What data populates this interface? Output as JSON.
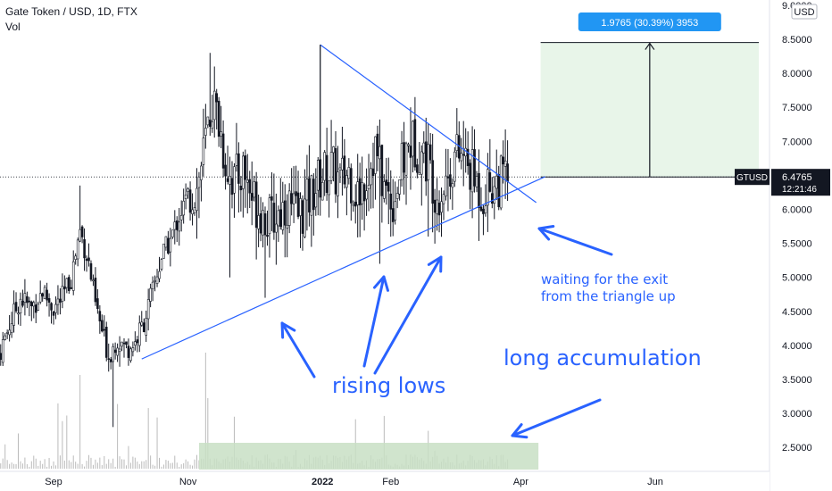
{
  "header": {
    "title": "Gate Token / USD, 1D, FTX",
    "vol_label": "Vol"
  },
  "currency_badge": "USD",
  "price_tag": {
    "symbol": "GTUSD",
    "price": "6.4765",
    "countdown": "12:21:46",
    "value": 6.4765
  },
  "projection": {
    "label": "1.9765 (30.39%) 3953",
    "from_price": 6.4765,
    "to_price": 8.453
  },
  "annotations": {
    "rising_lows": "rising lows",
    "long_accumulation": "long accumulation",
    "waiting_line1": "waiting for the exit",
    "waiting_line2": "from the triangle up"
  },
  "colors": {
    "up": "#26a69a",
    "candle": "#131722",
    "trendline": "#2962ff",
    "annotation": "#2962ff",
    "projection_fill": "#e8f5e9",
    "accumulation_fill": "#c8dfc4",
    "badge": "#2196f3",
    "price_tag_bg": "#131722"
  },
  "chart_data": {
    "type": "candlestick",
    "title": "Gate Token / USD, 1D, FTX",
    "y_axis": {
      "ticks": [
        "9.0000",
        "8.5000",
        "8.0000",
        "7.5000",
        "7.0000",
        "6.5000",
        "6.0000",
        "5.5000",
        "5.0000",
        "4.5000",
        "4.0000",
        "3.5000",
        "3.0000",
        "2.5000"
      ],
      "tick_values": [
        9.0,
        8.5,
        8.0,
        7.5,
        7.0,
        6.5,
        6.0,
        5.5,
        5.0,
        4.5,
        4.0,
        3.5,
        3.0,
        2.5
      ],
      "range": [
        2.3,
        9.05
      ]
    },
    "x_axis": {
      "ticks": [
        "Sep",
        "Nov",
        "2022",
        "Feb",
        "Apr",
        "Jun"
      ],
      "tick_dates": [
        "2021-09-01",
        "2021-11-01",
        "2022-01-01",
        "2022-02-01",
        "2022-04-01",
        "2022-06-01"
      ],
      "bold": [
        false,
        false,
        true,
        false,
        false,
        false
      ]
    },
    "series": [
      {
        "type": "close",
        "points": [
          [
            "2021-08-07",
            3.85
          ],
          [
            "2021-08-12",
            4.3
          ],
          [
            "2021-08-17",
            4.7
          ],
          [
            "2021-08-22",
            4.55
          ],
          [
            "2021-08-27",
            4.8
          ],
          [
            "2021-09-01",
            4.55
          ],
          [
            "2021-09-05",
            4.7
          ],
          [
            "2021-09-09",
            5.0
          ],
          [
            "2021-09-13",
            5.7
          ],
          [
            "2021-09-17",
            5.2
          ],
          [
            "2021-09-20",
            4.6
          ],
          [
            "2021-09-23",
            4.2
          ],
          [
            "2021-09-26",
            3.85
          ],
          [
            "2021-09-30",
            4.1
          ],
          [
            "2021-10-04",
            3.95
          ],
          [
            "2021-10-08",
            4.05
          ],
          [
            "2021-10-12",
            4.35
          ],
          [
            "2021-10-16",
            4.8
          ],
          [
            "2021-10-20",
            5.3
          ],
          [
            "2021-10-24",
            5.55
          ],
          [
            "2021-10-28",
            5.9
          ],
          [
            "2021-11-01",
            6.2
          ],
          [
            "2021-11-05",
            6.3
          ],
          [
            "2021-11-09",
            7.0
          ],
          [
            "2021-11-12",
            7.6
          ],
          [
            "2021-11-15",
            7.3
          ],
          [
            "2021-11-18",
            6.7
          ],
          [
            "2021-11-22",
            6.4
          ],
          [
            "2021-11-26",
            6.6
          ],
          [
            "2021-11-30",
            6.2
          ],
          [
            "2021-12-04",
            6.0
          ],
          [
            "2021-12-08",
            5.8
          ],
          [
            "2021-12-12",
            5.95
          ],
          [
            "2021-12-16",
            6.1
          ],
          [
            "2021-12-20",
            5.9
          ],
          [
            "2021-12-24",
            6.0
          ],
          [
            "2021-12-28",
            6.3
          ],
          [
            "2022-01-01",
            6.5
          ],
          [
            "2022-01-05",
            6.6
          ],
          [
            "2022-01-09",
            6.4
          ],
          [
            "2022-01-13",
            6.55
          ],
          [
            "2022-01-17",
            6.2
          ],
          [
            "2022-01-21",
            6.5
          ],
          [
            "2022-01-25",
            6.9
          ],
          [
            "2022-01-29",
            6.3
          ],
          [
            "2022-02-02",
            6.15
          ],
          [
            "2022-02-06",
            6.6
          ],
          [
            "2022-02-10",
            7.0
          ],
          [
            "2022-02-14",
            6.9
          ],
          [
            "2022-02-18",
            6.7
          ],
          [
            "2022-02-22",
            6.2
          ],
          [
            "2022-02-26",
            6.4
          ],
          [
            "2022-03-02",
            6.8
          ],
          [
            "2022-03-06",
            6.75
          ],
          [
            "2022-03-10",
            6.5
          ],
          [
            "2022-03-14",
            6.25
          ],
          [
            "2022-03-18",
            6.35
          ],
          [
            "2022-03-22",
            6.4
          ],
          [
            "2022-03-26",
            6.4765
          ]
        ]
      }
    ],
    "triangle": {
      "upper_line": [
        [
          "2021-12-31",
          8.42
        ],
        [
          "2022-04-08",
          6.1
        ]
      ],
      "lower_line": [
        [
          "2021-10-11",
          3.8
        ],
        [
          "2022-04-12",
          6.48
        ]
      ]
    },
    "accumulation_zone": [
      "2021-11-06",
      "2022-04-09"
    ],
    "projection_zone": [
      "2022-04-10",
      "2022-07-18"
    ]
  }
}
